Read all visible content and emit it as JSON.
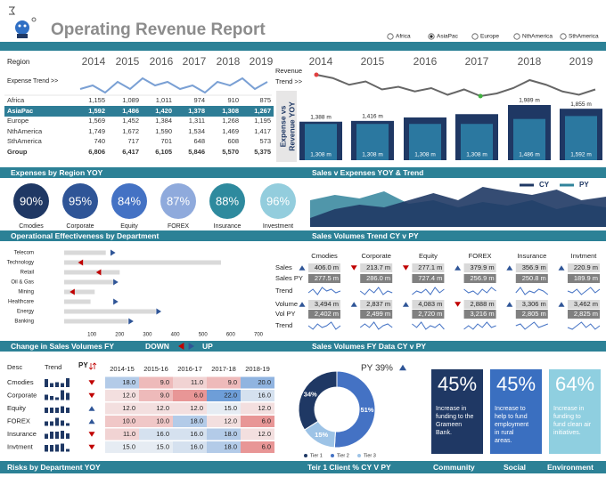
{
  "header": {
    "title": "Operating Revenue Report",
    "regions": [
      "Africa",
      "AsiaPac",
      "Europe",
      "NthAmerica",
      "SthAmerica"
    ],
    "selected_region": "AsiaPac"
  },
  "region_table": {
    "header": "Region",
    "years": [
      "2014",
      "2015",
      "2016",
      "2017",
      "2018",
      "2019"
    ],
    "expense_label": "Expense Trend >>",
    "expense_trend": [
      5,
      6,
      4,
      7,
      5,
      8,
      6,
      7,
      5,
      6,
      4,
      7,
      6,
      8,
      5,
      7
    ],
    "rows": [
      {
        "name": "Africa",
        "values": [
          "1,155",
          "1,089",
          "1,011",
          "974",
          "910",
          "875"
        ]
      },
      {
        "name": "AsiaPac",
        "values": [
          "1,592",
          "1,486",
          "1,420",
          "1,378",
          "1,308",
          "1,267"
        ]
      },
      {
        "name": "Europe",
        "values": [
          "1,569",
          "1,452",
          "1,384",
          "1,311",
          "1,268",
          "1,195"
        ]
      },
      {
        "name": "NthAmerica",
        "values": [
          "1,749",
          "1,672",
          "1,590",
          "1,534",
          "1,469",
          "1,417"
        ]
      },
      {
        "name": "SthAmerica",
        "values": [
          "740",
          "717",
          "701",
          "648",
          "608",
          "573"
        ]
      },
      {
        "name": "Group",
        "values": [
          "6,806",
          "6,417",
          "6,105",
          "5,846",
          "5,570",
          "5,375"
        ]
      }
    ],
    "highlight": "AsiaPac"
  },
  "revenue_chart": {
    "label_lines": [
      "Revenue",
      "Trend >>"
    ],
    "side_title": [
      "Expense vs",
      "Revenue YOY"
    ],
    "years": [
      "2014",
      "2015",
      "2016",
      "2017",
      "2018",
      "2019"
    ],
    "trend": [
      60,
      55,
      45,
      50,
      38,
      42,
      35,
      40,
      30,
      38,
      28,
      32,
      40,
      52,
      45,
      35,
      30,
      38
    ],
    "revenue": {
      "values": [
        1388,
        1416,
        1540,
        1660,
        1989,
        1855
      ],
      "value_labels": [
        "1,388 m",
        "1,416 m",
        null,
        null,
        "1,989 m",
        "1,855 m"
      ],
      "color": "#1f3864"
    },
    "expense": {
      "values": [
        1308,
        1308,
        1308,
        1308,
        1486,
        1592
      ],
      "value_labels": [
        "1,308 m",
        "1,308 m",
        "1,308 m",
        "1,308 m",
        "1,486 m",
        "1,592 m"
      ],
      "color": "#2b78a0"
    }
  },
  "sections": [
    [
      "Expenses by Region YOY",
      "Sales v Expenses YOY & Trend"
    ],
    [
      "Operational Effectiveness by Department",
      "Sales Volumes Trend CY v PY"
    ],
    [
      "Change in Sales Volumes FY",
      "Sales Volumes FY Data CY v PY"
    ]
  ],
  "change_toggle": {
    "down": "DOWN",
    "up": "UP"
  },
  "efficiency": [
    {
      "label": "90%",
      "name": "Cmodies",
      "color": "#1f3864"
    },
    {
      "label": "95%",
      "name": "Corporate",
      "color": "#2f5597"
    },
    {
      "label": "84%",
      "name": "Equity",
      "color": "#4472c4"
    },
    {
      "label": "87%",
      "name": "FOREX",
      "color": "#8faadc"
    },
    {
      "label": "88%",
      "name": "Insurance",
      "color": "#2e8a9e"
    },
    {
      "label": "96%",
      "name": "Investment",
      "color": "#93cddd"
    }
  ],
  "sales_vs_expenses": {
    "series": [
      {
        "name": "CY",
        "color": "#1f3864",
        "values": [
          10,
          20,
          25,
          22,
          30,
          38,
          30,
          45,
          40,
          36,
          42,
          30,
          34
        ]
      },
      {
        "name": "PY",
        "color": "#31849b",
        "values": [
          30,
          36,
          32,
          40,
          26,
          30,
          22,
          28,
          24,
          30,
          20,
          26,
          22
        ]
      }
    ]
  },
  "departments": {
    "names": [
      "Telecom",
      "Technology",
      "Retail",
      "Oil & Gas",
      "Mining",
      "Healthcare",
      "Energy",
      "Banking"
    ],
    "target": [
      150,
      565,
      200,
      180,
      110,
      95,
      330,
      230
    ],
    "actual": [
      185,
      50,
      115,
      195,
      20,
      195,
      350,
      250
    ],
    "xlim": [
      0,
      700
    ],
    "xticks": [
      100,
      200,
      300,
      400,
      500,
      600,
      700
    ]
  },
  "sales_table": {
    "columns": [
      "Cmodies",
      "Corporate",
      "Equity",
      "FOREX",
      "Insurance",
      "Invtment"
    ],
    "row_labels": [
      "Sales",
      "Sales PY",
      "Trend",
      "Volume",
      "Vol PY",
      "Trend"
    ],
    "sales": {
      "values": [
        406.0,
        213.7,
        277.1,
        379.9,
        356.9,
        220.9
      ],
      "value_labels": [
        "406.0 m",
        "213.7 m",
        "277.1 m",
        "379.9 m",
        "356.9 m",
        "220.9 m"
      ]
    },
    "sales_py": {
      "values": [
        277.5,
        286.0,
        727.4,
        256.9,
        250.8,
        189.9
      ],
      "value_labels": [
        "277.5 m",
        "286.0 m",
        "727.4 m",
        "256.9 m",
        "250.8 m",
        "189.9 m"
      ]
    },
    "sales_trend": [
      [
        3,
        5,
        2,
        6,
        4,
        5,
        3,
        4
      ],
      [
        4,
        2,
        5,
        3,
        6,
        2,
        4,
        3
      ],
      [
        2,
        4,
        3,
        5,
        2,
        6,
        3,
        5
      ],
      [
        5,
        3,
        4,
        2,
        5,
        3,
        6,
        4
      ],
      [
        3,
        6,
        2,
        4,
        3,
        5,
        4,
        2
      ],
      [
        4,
        3,
        5,
        2,
        4,
        6,
        3,
        5
      ]
    ],
    "volume": {
      "values": [
        3494,
        2837,
        4083,
        2888,
        3306,
        3462
      ],
      "value_labels": [
        "3,494 m",
        "2,837 m",
        "4,083 m",
        "2,888 m",
        "3,306 m",
        "3,462 m"
      ]
    },
    "volume_py": {
      "values": [
        2402,
        2499,
        2720,
        3216,
        2805,
        2825
      ],
      "value_labels": [
        "2,402 m",
        "2,499 m",
        "2,720 m",
        "3,216 m",
        "2,805 m",
        "2,825 m"
      ]
    },
    "volume_trend": [
      [
        4,
        2,
        5,
        3,
        4,
        6,
        2,
        4
      ],
      [
        3,
        5,
        3,
        6,
        2,
        4,
        5,
        3
      ],
      [
        5,
        3,
        6,
        2,
        4,
        3,
        5,
        2
      ],
      [
        2,
        4,
        2,
        5,
        3,
        6,
        3,
        4
      ],
      [
        4,
        5,
        2,
        4,
        6,
        3,
        4,
        5
      ],
      [
        3,
        2,
        4,
        6,
        3,
        5,
        2,
        4
      ]
    ]
  },
  "fy_table": {
    "headers": {
      "desc": "Desc",
      "trend": "Trend",
      "py": "PY",
      "years": [
        "2014-15",
        "2015-16",
        "2016-17",
        "2017-18",
        "2018-19"
      ]
    },
    "rows": [
      {
        "name": "Cmodies",
        "py": "down",
        "values": [
          18,
          9,
          11,
          9,
          20
        ],
        "value_labels": [
          "18.0",
          "9.0",
          "11.0",
          "9.0",
          "20.0"
        ]
      },
      {
        "name": "Corporate",
        "py": "down",
        "values": [
          12,
          9,
          6,
          22,
          16
        ],
        "value_labels": [
          "12.0",
          "9.0",
          "6.0",
          "22.0",
          "16.0"
        ]
      },
      {
        "name": "Equity",
        "py": "up",
        "values": [
          12,
          12,
          12,
          15,
          12
        ],
        "value_labels": [
          "12.0",
          "12.0",
          "12.0",
          "15.0",
          "12.0"
        ]
      },
      {
        "name": "FOREX",
        "py": "up",
        "values": [
          10,
          10,
          18,
          12,
          6
        ],
        "value_labels": [
          "10.0",
          "10.0",
          "18.0",
          "12.0",
          "6.0"
        ]
      },
      {
        "name": "Insurance",
        "py": "down",
        "values": [
          11,
          16,
          16,
          18,
          12
        ],
        "value_labels": [
          "11.0",
          "16.0",
          "16.0",
          "18.0",
          "12.0"
        ]
      },
      {
        "name": "Invtment",
        "py": "down",
        "values": [
          15,
          15,
          16,
          18,
          6
        ],
        "value_labels": [
          "15.0",
          "15.0",
          "16.0",
          "18.0",
          "6.0"
        ]
      }
    ]
  },
  "tier_donut": {
    "title": "PY 39%",
    "direction": "up",
    "series": [
      {
        "name": "Tier 1",
        "value": 34,
        "label": "34%",
        "color": "#1f3864"
      },
      {
        "name": "Tier 2",
        "value": 51,
        "label": "51%",
        "color": "#4472c4"
      },
      {
        "name": "Tier 3",
        "value": 15,
        "label": "15%",
        "color": "#9dc3e6"
      }
    ]
  },
  "cards": [
    {
      "value": "45%",
      "lines": [
        "Increase in",
        "funding to the",
        "Grameen",
        "Bank."
      ],
      "color": "#1f3864"
    },
    {
      "value": "45%",
      "lines": [
        "Increase to",
        "help to fund",
        "employment",
        "in rural",
        "areas."
      ],
      "color": "#3a6fc0"
    },
    {
      "value": "64%",
      "lines": [
        "Increase in",
        "funding to",
        "fund clean air",
        "initiatives."
      ],
      "color": "#8fcfe0"
    }
  ],
  "footer": [
    "Risks by Department YOY",
    "Teir 1 Client % CY V PY",
    "Community",
    "Social",
    "Environment"
  ]
}
